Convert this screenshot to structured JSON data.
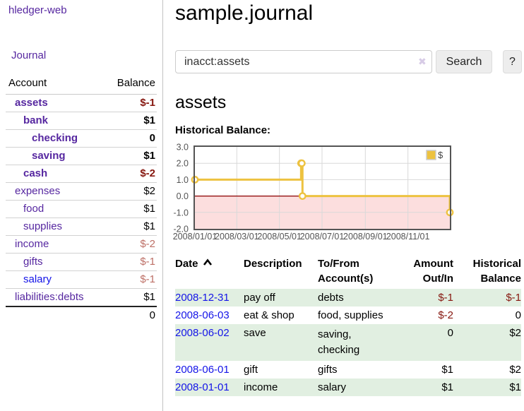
{
  "app": {
    "brand": "hledger-web"
  },
  "colors": {
    "accent_purple": "#5627a0",
    "link_blue": "#1414e8",
    "negative_dark": "#86170f",
    "negative_light": "#bd6f66",
    "row_stripe_green": "#e1efe1",
    "series_gold": "#edc240",
    "negative_region_pink": "#fcdede",
    "zero_line_red": "#8b0000"
  },
  "sidebar": {
    "nav_journal": "Journal",
    "accounts_table": {
      "headers": [
        "Account",
        "Balance"
      ],
      "rows": [
        {
          "account": "assets",
          "balance": "$-1",
          "indent": 1,
          "bold": true,
          "balance_tone": "neg",
          "link": "purple"
        },
        {
          "account": "bank",
          "balance": "$1",
          "indent": 2,
          "bold": true,
          "balance_tone": "",
          "link": "purple"
        },
        {
          "account": "checking",
          "balance": "0",
          "indent": 3,
          "bold": true,
          "balance_tone": "",
          "link": "purple"
        },
        {
          "account": "saving",
          "balance": "$1",
          "indent": 3,
          "bold": true,
          "balance_tone": "",
          "link": "purple"
        },
        {
          "account": "cash",
          "balance": "$-2",
          "indent": 2,
          "bold": true,
          "balance_tone": "neg",
          "link": "purple"
        },
        {
          "account": "expenses",
          "balance": "$2",
          "indent": 1,
          "bold": false,
          "balance_tone": "",
          "link": "purple"
        },
        {
          "account": "food",
          "balance": "$1",
          "indent": 2,
          "bold": false,
          "balance_tone": "",
          "link": "purple"
        },
        {
          "account": "supplies",
          "balance": "$1",
          "indent": 2,
          "bold": false,
          "balance_tone": "",
          "link": "purple"
        },
        {
          "account": "income",
          "balance": "$-2",
          "indent": 1,
          "bold": false,
          "balance_tone": "negl",
          "link": "purple"
        },
        {
          "account": "gifts",
          "balance": "$-1",
          "indent": 2,
          "bold": false,
          "balance_tone": "negl",
          "link": "purple"
        },
        {
          "account": "salary",
          "balance": "$-1",
          "indent": 2,
          "bold": false,
          "balance_tone": "negl",
          "link": "blue"
        },
        {
          "account": "liabilities:debts",
          "balance": "$1",
          "indent": 1,
          "bold": false,
          "balance_tone": "",
          "link": "purple"
        }
      ],
      "total": "0"
    }
  },
  "main": {
    "title": "sample.journal",
    "search": {
      "value": "inacct:assets",
      "clear_icon": "✖",
      "search_button": "Search",
      "help_button": "?"
    },
    "account_heading": "assets",
    "chart_label": "Historical Balance:"
  },
  "chart_data": {
    "type": "line",
    "step": true,
    "title": "Historical Balance",
    "series": [
      {
        "name": "$",
        "color": "#edc240",
        "points": [
          [
            "2008-01-01",
            1
          ],
          [
            "2008-06-01",
            2
          ],
          [
            "2008-06-02",
            2
          ],
          [
            "2008-06-03",
            0
          ],
          [
            "2008-12-31",
            -1
          ]
        ]
      }
    ],
    "x_ticks": [
      "2008/01/01",
      "2008/03/01",
      "2008/05/01",
      "2008/07/01",
      "2008/09/01",
      "2008/11/01"
    ],
    "y_ticks": [
      "3.0",
      "2.0",
      "1.0",
      "0.0",
      "-1.0",
      "-2.0"
    ],
    "ylim": [
      -2,
      3
    ],
    "xlim": [
      "2008-01-01",
      "2008-12-31"
    ],
    "grid": true,
    "legend": {
      "label": "$",
      "position": "top-right"
    },
    "negative_region": true
  },
  "register_table": {
    "headers": [
      "Date",
      "Description",
      "To/From Account(s)",
      "Amount Out/In",
      "Historical Balance"
    ],
    "rows": [
      {
        "date": "2008-12-31",
        "description": "pay off",
        "accounts": "debts",
        "amount": "$-1",
        "amount_tone": "neg",
        "balance": "$-1",
        "balance_tone": "neg"
      },
      {
        "date": "2008-06-03",
        "description": "eat & shop",
        "accounts": "food, supplies",
        "amount": "$-2",
        "amount_tone": "neg",
        "balance": "0",
        "balance_tone": ""
      },
      {
        "date": "2008-06-02",
        "description": "save",
        "accounts": "saving,\nchecking",
        "amount": "0",
        "amount_tone": "",
        "balance": "$2",
        "balance_tone": ""
      },
      {
        "date": "2008-06-01",
        "description": "gift",
        "accounts": "gifts",
        "amount": "$1",
        "amount_tone": "",
        "balance": "$2",
        "balance_tone": ""
      },
      {
        "date": "2008-01-01",
        "description": "income",
        "accounts": "salary",
        "amount": "$1",
        "amount_tone": "",
        "balance": "$1",
        "balance_tone": ""
      }
    ]
  }
}
